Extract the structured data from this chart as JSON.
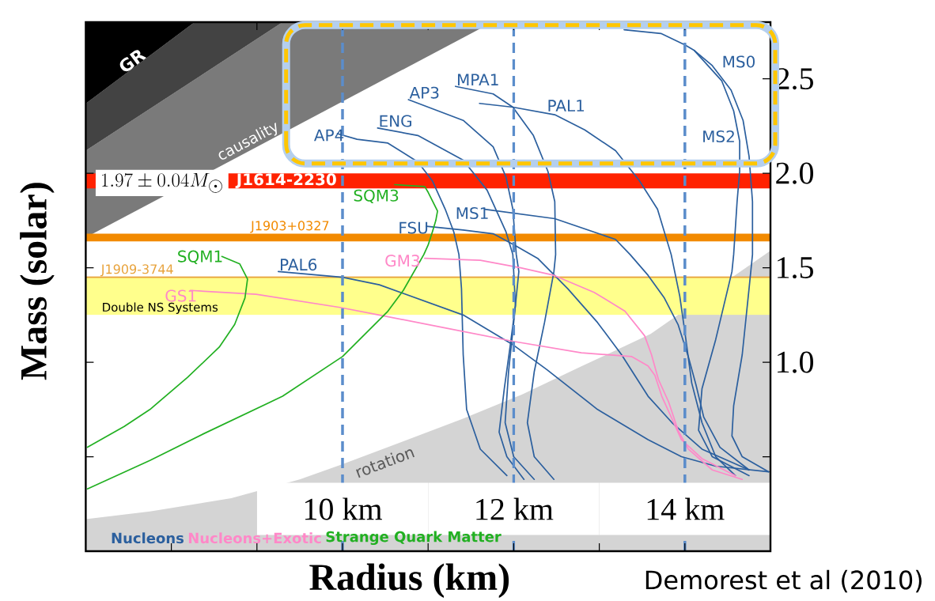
{
  "chart_data": {
    "type": "line",
    "xlabel": "Radius (km)",
    "ylabel": "Mass (solar)",
    "xlim": [
      7,
      15
    ],
    "ylim": [
      0,
      2.8
    ],
    "xticks": [
      {
        "value": 8,
        "label": null
      },
      {
        "value": 9,
        "label": null
      },
      {
        "value": 10,
        "label": null
      },
      {
        "value": 11,
        "label": null
      },
      {
        "value": 12,
        "label": null
      },
      {
        "value": 13,
        "label": null
      },
      {
        "value": 14,
        "label": null
      }
    ],
    "yticks": [
      {
        "value": 0.5,
        "label": null
      },
      {
        "value": 1,
        "label": "1.0"
      },
      1.5,
      {
        "value": 2,
        "label": "2.0"
      },
      2.5
    ],
    "tick_labels": "y",
    "series": [
      {
        "type": "area",
        "name": "rotation",
        "color": "#d4d4d4",
        "x": [
          7,
          7.75,
          8.7,
          9.5,
          10,
          10.7,
          11.4,
          12.1,
          12.8,
          13.6,
          15
        ],
        "values": [
          0.17,
          0.21,
          0.28,
          0.38,
          0.46,
          0.58,
          0.7,
          0.83,
          0.98,
          1.15,
          1.59
        ]
      },
      {
        "name": "AP4",
        "color": "#2b5f9e",
        "x": [
          9.94,
          10.17,
          10.53,
          10.88,
          11.05,
          11.2,
          11.3,
          11.36,
          11.39,
          11.41,
          11.45,
          11.61,
          11.92
        ],
        "values": [
          2.21,
          2.18,
          2.16,
          2.06,
          1.96,
          1.81,
          1.69,
          1.57,
          1.39,
          1.04,
          0.75,
          0.54,
          0.4
        ]
      },
      {
        "name": "ENG",
        "color": "#2b5f9e",
        "x": [
          10.41,
          10.88,
          11.41,
          11.69,
          11.91,
          11.99,
          12.02,
          11.96,
          11.89,
          11.83,
          11.92,
          12.12
        ],
        "values": [
          2.24,
          2.2,
          2.07,
          1.91,
          1.69,
          1.57,
          1.3,
          1.09,
          0.86,
          0.63,
          0.5,
          0.38
        ]
      },
      {
        "name": "AP3",
        "color": "#2b5f9e",
        "x": [
          10.77,
          11.41,
          11.76,
          11.91,
          11.99,
          12.03,
          12.06,
          12.0,
          11.94,
          11.9,
          12.0,
          12.24
        ],
        "values": [
          2.39,
          2.28,
          2.14,
          1.98,
          1.81,
          1.57,
          1.48,
          1.21,
          0.95,
          0.68,
          0.5,
          0.38
        ]
      },
      {
        "name": "MPA1",
        "color": "#2b5f9e",
        "x": [
          11.32,
          11.76,
          11.99,
          12.23,
          12.4,
          12.48,
          12.49,
          12.47,
          12.36,
          12.24,
          12.16,
          12.24,
          12.47
        ],
        "values": [
          2.46,
          2.42,
          2.35,
          2.2,
          2.01,
          1.85,
          1.57,
          1.48,
          1.21,
          0.95,
          0.68,
          0.5,
          0.38
        ]
      },
      {
        "name": "PAL1",
        "color": "#2b5f9e",
        "x": [
          11.6,
          11.99,
          12.48,
          12.83,
          13.19,
          13.47,
          13.68,
          13.84,
          13.94,
          14.0,
          14.08,
          14.2,
          14.36,
          14.59
        ],
        "values": [
          2.37,
          2.35,
          2.31,
          2.23,
          2.12,
          1.96,
          1.81,
          1.57,
          1.35,
          1.16,
          0.89,
          0.68,
          0.5,
          0.4
        ]
      },
      {
        "name": "MS0",
        "color": "#2b5f9e",
        "x": [
          13.29,
          13.72,
          14.0,
          14.11,
          14.32,
          14.54,
          14.68,
          14.75,
          14.79,
          14.79,
          14.75,
          14.67,
          14.57,
          14.55,
          14.67,
          14.98
        ],
        "values": [
          2.76,
          2.74,
          2.68,
          2.65,
          2.57,
          2.44,
          2.28,
          2.09,
          1.85,
          1.57,
          1.39,
          1.04,
          0.77,
          0.61,
          0.5,
          0.42
        ]
      },
      {
        "name": "MS2",
        "color": "#2b5f9e",
        "x": [
          14.11,
          14.43,
          14.57,
          14.64,
          14.64,
          14.61,
          14.57,
          14.55,
          14.36,
          14.2,
          14.16,
          14.32,
          14.75
        ],
        "values": [
          2.65,
          2.49,
          2.33,
          2.17,
          2.01,
          1.85,
          1.57,
          1.48,
          1.12,
          0.86,
          0.64,
          0.5,
          0.4
        ]
      },
      {
        "name": "MS1",
        "color": "#2b5f9e",
        "x": [
          11.66,
          12.48,
          13.19,
          13.36,
          13.57,
          13.76,
          13.92,
          14.04,
          14.13,
          14.22,
          14.41,
          14.75
        ],
        "values": [
          1.81,
          1.76,
          1.65,
          1.57,
          1.46,
          1.34,
          1.2,
          1.03,
          0.88,
          0.71,
          0.55,
          0.43
        ]
      },
      {
        "name": "FSU",
        "color": "#2b5f9e",
        "x": [
          10.98,
          11.41,
          11.76,
          12.01,
          12.28,
          12.63,
          12.98,
          13.26,
          13.57,
          13.85,
          14.2,
          14.75
        ],
        "values": [
          1.72,
          1.7,
          1.68,
          1.62,
          1.55,
          1.39,
          1.21,
          1.04,
          0.82,
          0.68,
          0.54,
          0.43
        ]
      },
      {
        "name": "PAL6",
        "color": "#2b5f9e",
        "x": [
          9.25,
          10.0,
          10.43,
          11.41,
          12.0,
          12.39,
          12.98,
          13.57,
          13.96,
          14.36,
          14.98
        ],
        "values": [
          1.48,
          1.45,
          1.41,
          1.25,
          1.09,
          0.96,
          0.75,
          0.59,
          0.5,
          0.45,
          0.42
        ]
      },
      {
        "name": "GM3",
        "color": "#ff88c8",
        "x": [
          10.96,
          11.61,
          12.08,
          12.47,
          12.94,
          13.3,
          13.53,
          13.61,
          13.69,
          13.81,
          13.92,
          14.04,
          14.32,
          14.67
        ],
        "values": [
          1.55,
          1.54,
          1.5,
          1.46,
          1.37,
          1.27,
          1.14,
          1.04,
          0.91,
          0.79,
          0.64,
          0.54,
          0.43,
          0.38
        ]
      },
      {
        "name": "GS1",
        "color": "#ff88c8",
        "x": [
          8.22,
          8.99,
          9.97,
          10.43,
          11.22,
          12.0,
          12.79,
          13.38,
          13.57,
          13.65,
          13.73,
          13.85,
          13.96,
          14.2,
          14.59
        ],
        "values": [
          1.38,
          1.36,
          1.29,
          1.25,
          1.18,
          1.11,
          1.05,
          1.03,
          0.98,
          0.93,
          0.82,
          0.7,
          0.59,
          0.49,
          0.4
        ]
      },
      {
        "name": "SQM1",
        "color": "#22b022",
        "x": [
          8.59,
          8.8,
          8.89,
          8.86,
          8.74,
          8.56,
          8.19,
          7.75,
          7.45,
          7.02
        ],
        "values": [
          1.56,
          1.52,
          1.44,
          1.34,
          1.2,
          1.08,
          0.92,
          0.75,
          0.66,
          0.55
        ]
      },
      {
        "name": "SQM3",
        "color": "#22b022",
        "x": [
          10.61,
          10.96,
          11.0,
          11.11,
          11.09,
          11.05,
          11.0,
          10.95,
          10.71,
          10.53,
          10.0,
          9.3,
          8.37,
          7.75,
          7.02
        ],
        "values": [
          1.94,
          1.93,
          1.9,
          1.8,
          1.75,
          1.69,
          1.62,
          1.57,
          1.38,
          1.27,
          1.03,
          0.82,
          0.62,
          0.48,
          0.33
        ]
      }
    ],
    "bands": [
      {
        "axis": "y",
        "from": 1.92,
        "to": 2.0,
        "label": "J1614-2230",
        "color": "#ff2200"
      },
      {
        "axis": "y",
        "from": 1.64,
        "to": 1.68,
        "label": "J1903+0327",
        "color": "#f28a00"
      },
      {
        "axis": "y",
        "from": 1.25,
        "to": 1.45,
        "label": "Double NS Systems",
        "color": "#ffff8c"
      }
    ],
    "ref_lines": [
      {
        "axis": "y",
        "value": 1.45,
        "label": "J1909-3744",
        "color": "#e8a33c"
      },
      {
        "axis": "x",
        "value": 10,
        "label": "10 km",
        "color": "#5b8dcb",
        "line_style": "dashed"
      },
      {
        "axis": "x",
        "value": 12,
        "label": "12 km",
        "color": "#5b8dcb",
        "line_style": "dashed"
      },
      {
        "axis": "x",
        "value": 14,
        "label": "14 km",
        "color": "#5b8dcb",
        "line_style": "dashed"
      }
    ],
    "annotations": [
      "GR",
      "causality",
      "1.97\\pm0.04M_{\\odot}",
      "Nucleons",
      "Nucleons+Exotic",
      "Strange Quark Matter",
      "Demorest et al (2010)"
    ]
  }
}
